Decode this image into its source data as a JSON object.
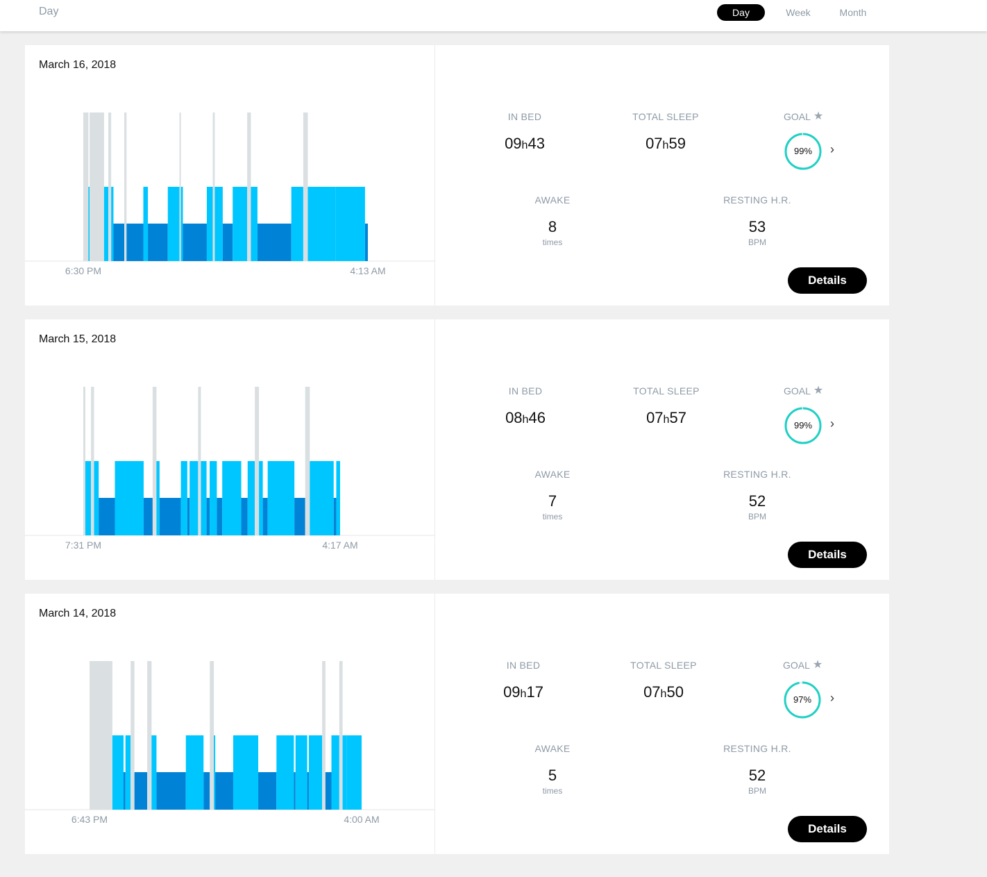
{
  "header": {
    "page_label": "Day",
    "periods": [
      {
        "label": "Day",
        "active": true
      },
      {
        "label": "Week",
        "active": false
      },
      {
        "label": "Month",
        "active": false
      }
    ]
  },
  "colors": {
    "awake": "#dadfe2",
    "light": "#00c6ff",
    "deep": "#0083d6",
    "goal_ring": "#1fd0c4",
    "button": "#000000"
  },
  "labels": {
    "in_bed": "IN BED",
    "total_sleep": "TOTAL SLEEP",
    "goal": "GOAL",
    "awake": "AWAKE",
    "resting_hr": "RESTING H.R.",
    "times": "times",
    "bpm": "BPM",
    "details": "Details",
    "hour_sep": "h"
  },
  "days": [
    {
      "date": "March 16, 2018",
      "start": "6:30 PM",
      "end": "4:13 AM",
      "in_bed": {
        "h": "09",
        "m": "43"
      },
      "total_sleep": {
        "h": "07",
        "m": "59"
      },
      "goal_pct": 99,
      "goal_pct_label": "99%",
      "awake_times": "8",
      "resting_hr": "53",
      "chart_data": {
        "type": "sleep-timeline",
        "phases": [
          [
            0.0,
            0.018,
            "awake"
          ],
          [
            0.018,
            0.022,
            "light"
          ],
          [
            0.022,
            0.073,
            "awake"
          ],
          [
            0.073,
            0.088,
            "light"
          ],
          [
            0.088,
            0.098,
            "awake"
          ],
          [
            0.098,
            0.106,
            "light"
          ],
          [
            0.106,
            0.144,
            "deep"
          ],
          [
            0.144,
            0.152,
            "awake"
          ],
          [
            0.152,
            0.211,
            "deep"
          ],
          [
            0.211,
            0.227,
            "light"
          ],
          [
            0.227,
            0.297,
            "deep"
          ],
          [
            0.297,
            0.338,
            "light"
          ],
          [
            0.338,
            0.343,
            "awake"
          ],
          [
            0.343,
            0.35,
            "light"
          ],
          [
            0.35,
            0.434,
            "deep"
          ],
          [
            0.434,
            0.455,
            "light"
          ],
          [
            0.455,
            0.462,
            "awake"
          ],
          [
            0.462,
            0.478,
            "light"
          ],
          [
            0.478,
            0.49,
            "light"
          ],
          [
            0.49,
            0.525,
            "deep"
          ],
          [
            0.525,
            0.576,
            "light"
          ],
          [
            0.576,
            0.589,
            "awake"
          ],
          [
            0.589,
            0.612,
            "light"
          ],
          [
            0.612,
            0.731,
            "deep"
          ],
          [
            0.731,
            0.773,
            "light"
          ],
          [
            0.773,
            0.789,
            "awake"
          ],
          [
            0.789,
            0.887,
            "light"
          ],
          [
            0.887,
            0.99,
            "light"
          ],
          [
            0.99,
            1.0,
            "deep"
          ]
        ]
      }
    },
    {
      "date": "March 15, 2018",
      "start": "7:31 PM",
      "end": "4:17 AM",
      "in_bed": {
        "h": "08",
        "m": "46"
      },
      "total_sleep": {
        "h": "07",
        "m": "57"
      },
      "goal_pct": 99,
      "goal_pct_label": "99%",
      "awake_times": "7",
      "resting_hr": "52",
      "chart_data": {
        "type": "sleep-timeline",
        "phases": [
          [
            0.0,
            0.008,
            "awake"
          ],
          [
            0.008,
            0.03,
            "light"
          ],
          [
            0.03,
            0.042,
            "awake"
          ],
          [
            0.042,
            0.06,
            "light"
          ],
          [
            0.06,
            0.123,
            "deep"
          ],
          [
            0.123,
            0.235,
            "light"
          ],
          [
            0.235,
            0.27,
            "deep"
          ],
          [
            0.27,
            0.285,
            "awake"
          ],
          [
            0.285,
            0.297,
            "light"
          ],
          [
            0.297,
            0.38,
            "deep"
          ],
          [
            0.38,
            0.405,
            "light"
          ],
          [
            0.405,
            0.414,
            "deep"
          ],
          [
            0.414,
            0.447,
            "light"
          ],
          [
            0.447,
            0.458,
            "awake"
          ],
          [
            0.458,
            0.48,
            "light"
          ],
          [
            0.48,
            0.492,
            "deep"
          ],
          [
            0.492,
            0.52,
            "light"
          ],
          [
            0.52,
            0.541,
            "deep"
          ],
          [
            0.541,
            0.615,
            "light"
          ],
          [
            0.615,
            0.64,
            "deep"
          ],
          [
            0.64,
            0.668,
            "light"
          ],
          [
            0.668,
            0.684,
            "awake"
          ],
          [
            0.684,
            0.699,
            "light"
          ],
          [
            0.699,
            0.718,
            "deep"
          ],
          [
            0.718,
            0.822,
            "light"
          ],
          [
            0.822,
            0.864,
            "deep"
          ],
          [
            0.864,
            0.882,
            "awake"
          ],
          [
            0.882,
            0.975,
            "light"
          ],
          [
            0.975,
            0.985,
            "deep"
          ],
          [
            0.985,
            1.0,
            "light"
          ]
        ]
      }
    },
    {
      "date": "March 14, 2018",
      "start": "6:43 PM",
      "end": "4:00 AM",
      "in_bed": {
        "h": "09",
        "m": "17"
      },
      "total_sleep": {
        "h": "07",
        "m": "50"
      },
      "goal_pct": 97,
      "goal_pct_label": "97%",
      "awake_times": "5",
      "resting_hr": "52",
      "chart_data": {
        "type": "sleep-timeline",
        "phases": [
          [
            0.0,
            0.084,
            "awake"
          ],
          [
            0.084,
            0.125,
            "light"
          ],
          [
            0.125,
            0.132,
            "deep"
          ],
          [
            0.132,
            0.151,
            "light"
          ],
          [
            0.151,
            0.165,
            "awake"
          ],
          [
            0.165,
            0.212,
            "deep"
          ],
          [
            0.212,
            0.228,
            "awake"
          ],
          [
            0.228,
            0.246,
            "light"
          ],
          [
            0.246,
            0.354,
            "deep"
          ],
          [
            0.354,
            0.419,
            "light"
          ],
          [
            0.419,
            0.442,
            "deep"
          ],
          [
            0.442,
            0.457,
            "awake"
          ],
          [
            0.457,
            0.462,
            "light"
          ],
          [
            0.462,
            0.528,
            "deep"
          ],
          [
            0.528,
            0.62,
            "light"
          ],
          [
            0.62,
            0.687,
            "deep"
          ],
          [
            0.687,
            0.751,
            "light"
          ],
          [
            0.751,
            0.757,
            "deep"
          ],
          [
            0.757,
            0.8,
            "light"
          ],
          [
            0.8,
            0.806,
            "deep"
          ],
          [
            0.806,
            0.855,
            "light"
          ],
          [
            0.855,
            0.867,
            "awake"
          ],
          [
            0.867,
            0.889,
            "deep"
          ],
          [
            0.889,
            0.918,
            "light"
          ],
          [
            0.918,
            0.93,
            "awake"
          ],
          [
            0.93,
            0.946,
            "light"
          ],
          [
            0.946,
            1.0,
            "light"
          ]
        ]
      }
    }
  ]
}
